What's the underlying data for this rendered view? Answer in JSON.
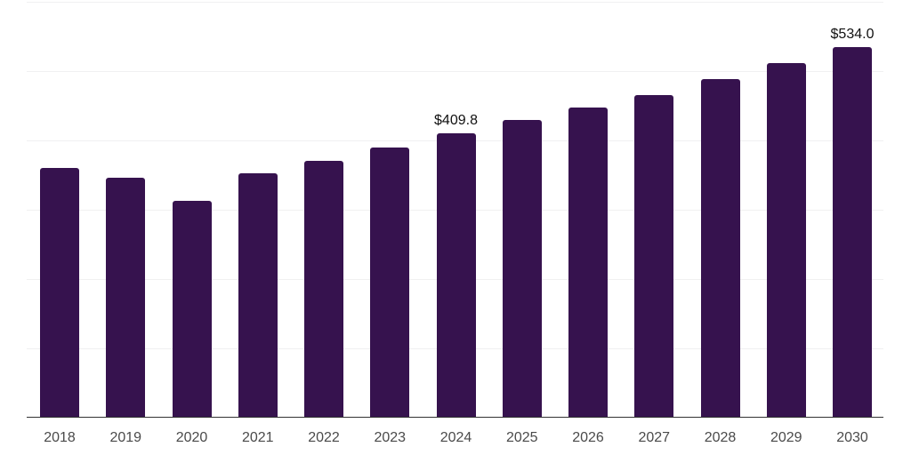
{
  "chart_data": {
    "type": "bar",
    "categories": [
      "2018",
      "2019",
      "2020",
      "2021",
      "2022",
      "2023",
      "2024",
      "2025",
      "2026",
      "2027",
      "2028",
      "2029",
      "2030"
    ],
    "values": [
      360.0,
      346.0,
      313.0,
      352.0,
      370.0,
      390.0,
      409.8,
      429.5,
      448.0,
      465.5,
      488.5,
      511.5,
      534.0
    ],
    "data_labels": {
      "2024": "$409.8",
      "2030": "$534.0"
    },
    "title": "",
    "xlabel": "",
    "ylabel": "",
    "ylim": [
      0,
      600
    ],
    "grid_step": 100,
    "grid": "on",
    "legend": "none",
    "colors": {
      "bar": "#36124E",
      "gridline": "#f0f0f1",
      "axis": "#333333",
      "tick_label": "#4a4a4a",
      "data_label": "#111111",
      "background": "#ffffff"
    }
  }
}
